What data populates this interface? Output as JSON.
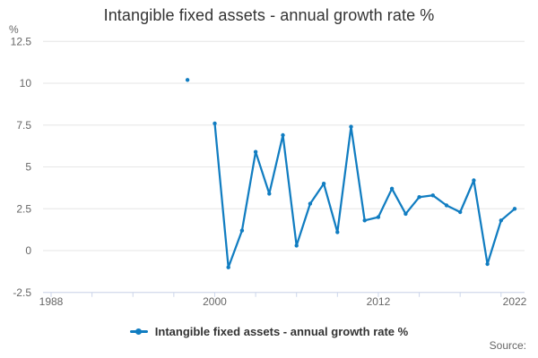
{
  "title": "Intangible fixed assets - annual growth rate %",
  "y_axis": {
    "unit": "%"
  },
  "legend": {
    "label": "Intangible fixed assets - annual growth rate %"
  },
  "source_label": "Source:",
  "colors": {
    "line": "#117dc1",
    "grid": "#e6e6e6",
    "axis": "#ccd6eb",
    "text_dark": "#333333",
    "text_muted": "#666666"
  },
  "chart_data": {
    "type": "line",
    "title": "Intangible fixed assets - annual growth rate %",
    "xlabel": "",
    "ylabel": "%",
    "ylim": [
      -2.5,
      12.5
    ],
    "xlim": [
      1988,
      2022
    ],
    "yticks": [
      12.5,
      10,
      7.5,
      5,
      2.5,
      0,
      -2.5
    ],
    "xtick_labels": [
      1988,
      2000,
      2012,
      2022
    ],
    "xtick_interval": 3,
    "grid": "horizontal",
    "legend_position": "bottom",
    "notes": "Isolated point at 1998; no data for 1999 creates a line gap",
    "series": [
      {
        "name": "Intangible fixed assets - annual growth rate %",
        "points": [
          [
            1998,
            10.2
          ],
          [
            1999,
            null
          ],
          [
            2000,
            7.6
          ],
          [
            2001,
            -1.0
          ],
          [
            2002,
            1.2
          ],
          [
            2003,
            5.9
          ],
          [
            2004,
            3.4
          ],
          [
            2005,
            6.9
          ],
          [
            2006,
            0.3
          ],
          [
            2007,
            2.8
          ],
          [
            2008,
            4.0
          ],
          [
            2009,
            1.1
          ],
          [
            2010,
            7.4
          ],
          [
            2011,
            1.8
          ],
          [
            2012,
            2.0
          ],
          [
            2013,
            3.7
          ],
          [
            2014,
            2.2
          ],
          [
            2015,
            3.2
          ],
          [
            2016,
            3.3
          ],
          [
            2017,
            2.7
          ],
          [
            2018,
            2.3
          ],
          [
            2019,
            4.2
          ],
          [
            2020,
            -0.8
          ],
          [
            2021,
            1.8
          ],
          [
            2022,
            2.5
          ]
        ]
      }
    ]
  }
}
